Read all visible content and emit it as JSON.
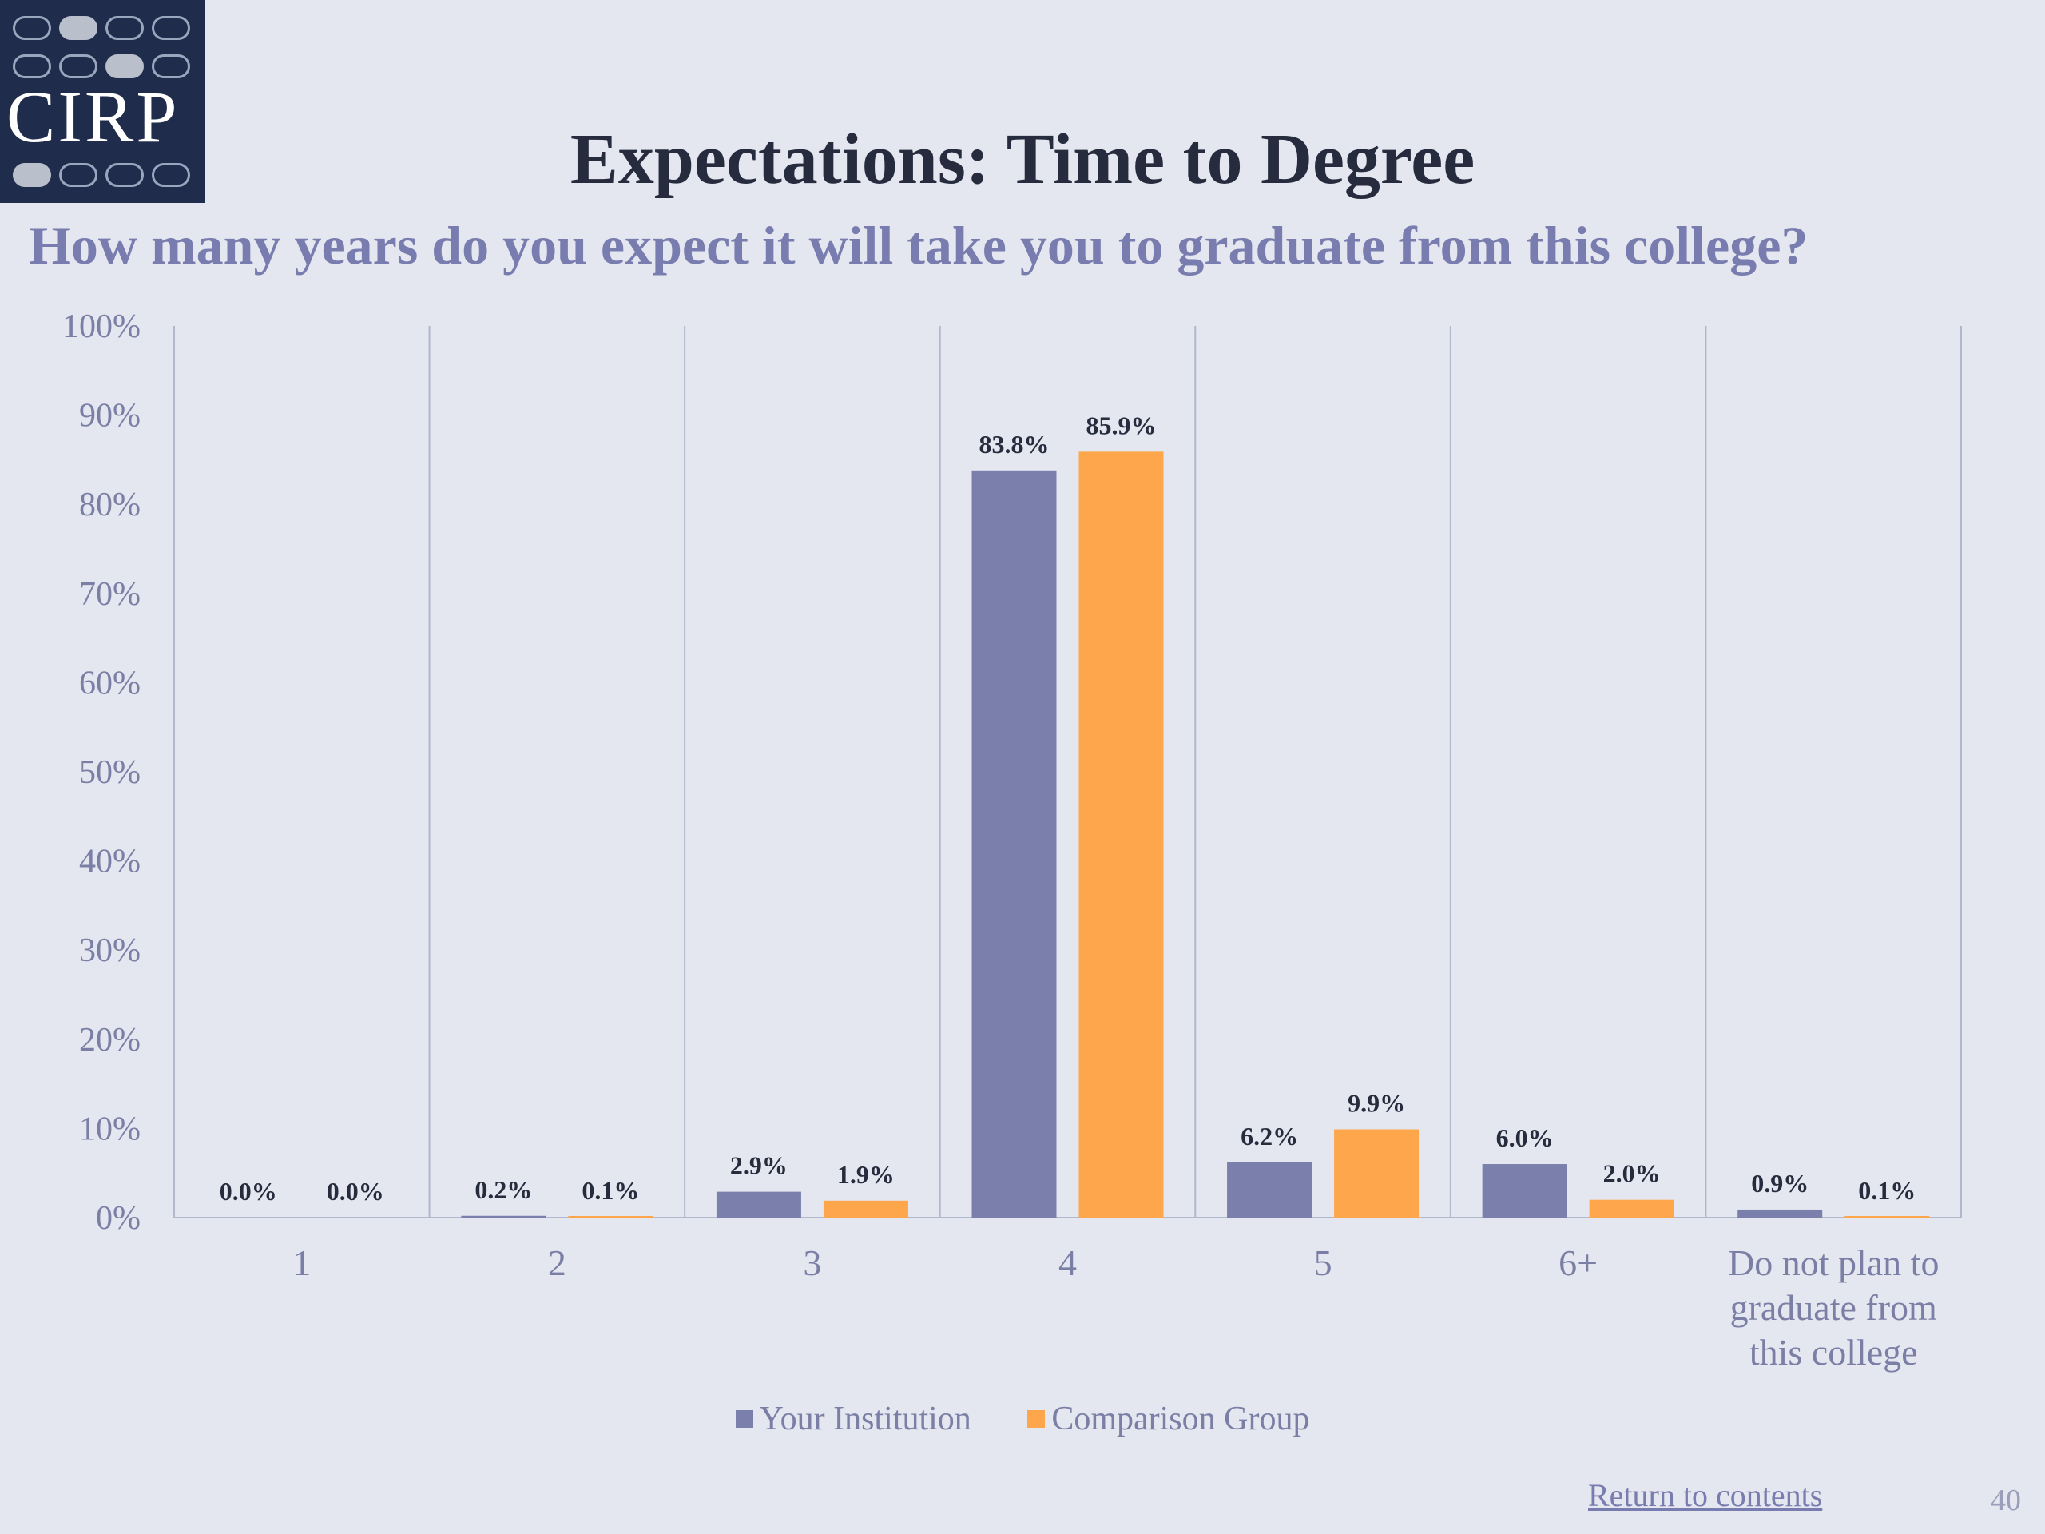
{
  "logo": {
    "text": "CIRP"
  },
  "title": "Expectations: Time to Degree",
  "subtitle": "How many years do you expect it will take you to graduate from this college?",
  "chart_data": {
    "type": "bar",
    "categories": [
      "1",
      "2",
      "3",
      "4",
      "5",
      "6+",
      "Do not plan to graduate from this college"
    ],
    "category_lines": [
      [
        "1"
      ],
      [
        "2"
      ],
      [
        "3"
      ],
      [
        "4"
      ],
      [
        "5"
      ],
      [
        "6+"
      ],
      [
        "Do not plan to",
        "graduate from",
        "this college"
      ]
    ],
    "series": [
      {
        "name": "Your Institution",
        "color": "#7a7fab",
        "values": [
          0.0,
          0.2,
          2.9,
          83.8,
          6.2,
          6.0,
          0.9
        ],
        "labels": [
          "0.0%",
          "0.2%",
          "2.9%",
          "83.8%",
          "6.2%",
          "6.0%",
          "0.9%"
        ]
      },
      {
        "name": "Comparison Group",
        "color": "#fda64b",
        "values": [
          0.0,
          0.1,
          1.9,
          85.9,
          9.9,
          2.0,
          0.1
        ],
        "labels": [
          "0.0%",
          "0.1%",
          "1.9%",
          "85.9%",
          "9.9%",
          "2.0%",
          "0.1%"
        ]
      }
    ],
    "yticks": [
      "0%",
      "10%",
      "20%",
      "30%",
      "40%",
      "50%",
      "60%",
      "70%",
      "80%",
      "90%",
      "100%"
    ],
    "ylim": [
      0,
      100
    ],
    "grid": "vertical separators",
    "legend": "bottom-center"
  },
  "footer": {
    "return_link": "Return to contents",
    "page_number": "40"
  }
}
